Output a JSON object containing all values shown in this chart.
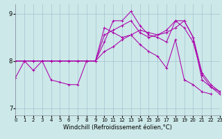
{
  "xlabel": "Windchill (Refroidissement éolien,°C)",
  "background_color": "#cce8e8",
  "line_color": "#aa00aa",
  "xlim": [
    0,
    23
  ],
  "ylim": [
    6.85,
    9.2
  ],
  "yticks": [
    7,
    8,
    9
  ],
  "xticks": [
    0,
    1,
    2,
    3,
    4,
    5,
    6,
    7,
    8,
    9,
    10,
    11,
    12,
    13,
    14,
    15,
    16,
    17,
    18,
    19,
    20,
    21,
    22,
    23
  ],
  "series": [
    [
      7.65,
      8.0,
      7.8,
      8.0,
      7.6,
      7.55,
      7.5,
      7.5,
      8.0,
      8.0,
      8.7,
      8.6,
      8.5,
      8.55,
      8.35,
      8.2,
      8.1,
      7.85,
      8.45,
      7.6,
      7.5,
      7.35,
      7.3,
      null
    ],
    [
      8.0,
      8.0,
      8.0,
      8.0,
      8.0,
      8.0,
      8.0,
      8.0,
      8.0,
      8.0,
      8.4,
      8.85,
      8.85,
      9.05,
      8.75,
      8.55,
      8.5,
      8.4,
      8.85,
      8.7,
      8.4,
      7.7,
      7.45,
      7.35
    ],
    [
      8.0,
      8.0,
      8.0,
      8.0,
      8.0,
      8.0,
      8.0,
      8.0,
      8.0,
      8.0,
      8.2,
      8.3,
      8.45,
      8.55,
      8.65,
      8.6,
      8.55,
      8.6,
      8.7,
      8.85,
      8.5,
      7.75,
      7.5,
      7.35
    ],
    [
      8.0,
      8.0,
      8.0,
      8.0,
      8.0,
      8.0,
      8.0,
      8.0,
      8.0,
      8.0,
      8.55,
      8.65,
      8.75,
      8.85,
      8.6,
      8.5,
      8.55,
      8.65,
      8.85,
      8.85,
      8.5,
      7.6,
      7.45,
      7.3
    ]
  ],
  "grid_color": "#99bbcc",
  "tick_fontsize": 5,
  "label_fontsize": 6,
  "linewidth": 0.75,
  "markersize": 2.5,
  "markeredgewidth": 0.7
}
